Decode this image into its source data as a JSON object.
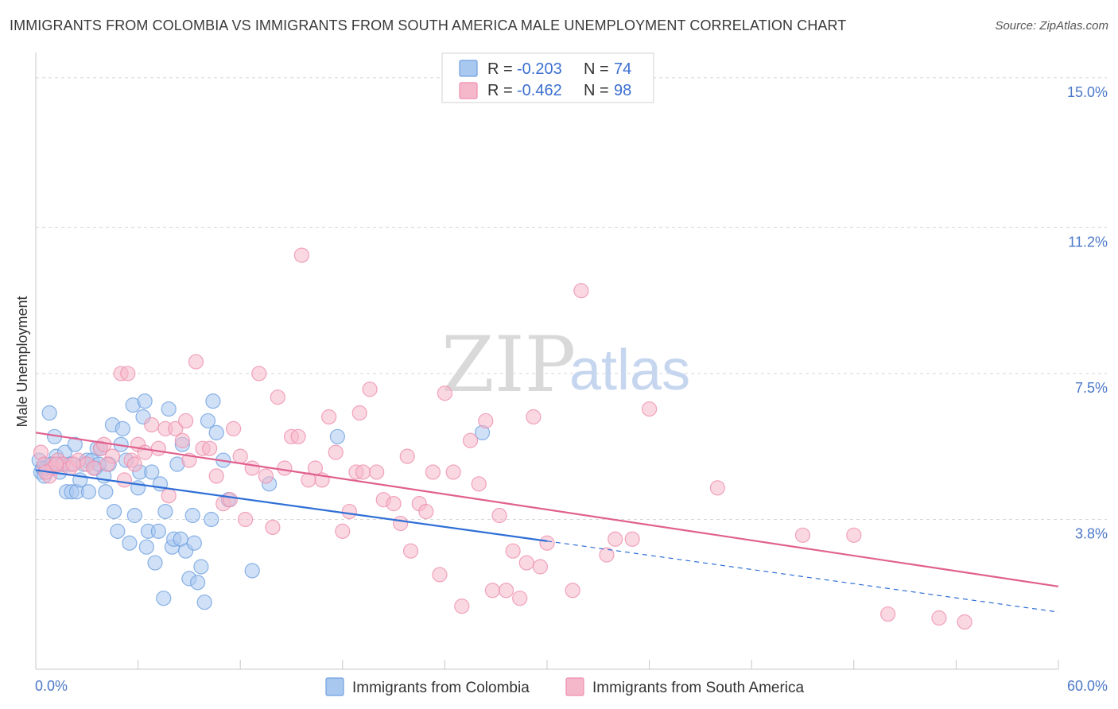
{
  "title": "IMMIGRANTS FROM COLOMBIA VS IMMIGRANTS FROM SOUTH AMERICA MALE UNEMPLOYMENT CORRELATION CHART",
  "source": "Source: ZipAtlas.com",
  "watermark": {
    "zip": "ZIP",
    "atlas": "atlas"
  },
  "colors": {
    "blue_fill": "#a9c8f0",
    "blue_stroke": "#6fa0e0",
    "blue_line": "#2f6fd6",
    "pink_fill": "#f5b8cb",
    "pink_stroke": "#ee8fae",
    "pink_line": "#e0608e",
    "grid": "#d8d8d8",
    "axis_label": "#4a78c8"
  },
  "legend": {
    "rows": [
      {
        "r_label": "R = ",
        "r_value": "-0.203",
        "n_label": "N = ",
        "n_value": "74"
      },
      {
        "r_label": "R = ",
        "r_value": "-0.462",
        "n_label": "N = ",
        "n_value": "98"
      }
    ]
  },
  "chart_data": {
    "type": "scatter",
    "xlabel": "",
    "ylabel": "Male Unemployment",
    "xlim": [
      0,
      60
    ],
    "ylim": [
      0,
      15.4
    ],
    "x_tick_labels": [
      "0.0%",
      "60.0%"
    ],
    "y_ticks": [
      3.8,
      7.5,
      11.2,
      15.0
    ],
    "y_tick_labels": [
      "3.8%",
      "7.5%",
      "11.2%",
      "15.0%"
    ],
    "grid": "horizontal dashed",
    "legend_position": "top-center",
    "series": [
      {
        "name": "Immigrants from Colombia",
        "color": "blue",
        "trend": {
          "x0": 0.0,
          "y0": 5.05,
          "x1": 30.0,
          "y1": 3.25,
          "dashed_to_x": 60.0,
          "dashed_to_y": 1.45
        },
        "points": [
          [
            0.2,
            5.3
          ],
          [
            0.3,
            5.0
          ],
          [
            0.4,
            5.1
          ],
          [
            0.5,
            4.9
          ],
          [
            0.6,
            5.1
          ],
          [
            0.8,
            6.5
          ],
          [
            1.0,
            5.2
          ],
          [
            1.1,
            5.9
          ],
          [
            1.2,
            5.4
          ],
          [
            1.4,
            5.0
          ],
          [
            1.6,
            5.2
          ],
          [
            1.7,
            5.5
          ],
          [
            1.8,
            4.5
          ],
          [
            2.0,
            5.2
          ],
          [
            2.1,
            4.5
          ],
          [
            2.3,
            5.7
          ],
          [
            2.4,
            4.5
          ],
          [
            2.6,
            4.8
          ],
          [
            2.8,
            5.2
          ],
          [
            3.0,
            5.3
          ],
          [
            3.1,
            4.5
          ],
          [
            3.3,
            5.3
          ],
          [
            3.5,
            5.1
          ],
          [
            3.6,
            5.6
          ],
          [
            3.8,
            5.6
          ],
          [
            4.0,
            4.9
          ],
          [
            4.1,
            4.5
          ],
          [
            4.3,
            5.2
          ],
          [
            4.5,
            6.2
          ],
          [
            4.6,
            4.0
          ],
          [
            4.8,
            3.5
          ],
          [
            5.0,
            5.7
          ],
          [
            5.1,
            6.1
          ],
          [
            5.3,
            5.3
          ],
          [
            5.5,
            3.2
          ],
          [
            5.7,
            6.7
          ],
          [
            5.8,
            3.9
          ],
          [
            6.0,
            4.6
          ],
          [
            6.1,
            5.0
          ],
          [
            6.3,
            6.4
          ],
          [
            6.4,
            6.8
          ],
          [
            6.5,
            3.1
          ],
          [
            6.6,
            3.5
          ],
          [
            6.8,
            5.0
          ],
          [
            7.0,
            2.7
          ],
          [
            7.2,
            3.5
          ],
          [
            7.3,
            4.7
          ],
          [
            7.5,
            1.8
          ],
          [
            7.6,
            4.0
          ],
          [
            7.8,
            6.6
          ],
          [
            8.0,
            3.1
          ],
          [
            8.1,
            3.3
          ],
          [
            8.3,
            5.2
          ],
          [
            8.5,
            3.3
          ],
          [
            8.6,
            5.7
          ],
          [
            8.8,
            3.0
          ],
          [
            9.0,
            2.3
          ],
          [
            9.2,
            3.9
          ],
          [
            9.3,
            3.2
          ],
          [
            9.5,
            2.2
          ],
          [
            9.7,
            2.6
          ],
          [
            9.9,
            1.7
          ],
          [
            10.1,
            6.3
          ],
          [
            10.3,
            3.8
          ],
          [
            10.4,
            6.8
          ],
          [
            10.6,
            6.0
          ],
          [
            11.0,
            5.3
          ],
          [
            11.3,
            4.3
          ],
          [
            12.7,
            2.5
          ],
          [
            13.7,
            4.7
          ],
          [
            17.7,
            5.9
          ],
          [
            26.2,
            6.0
          ],
          [
            0.9,
            5.2
          ],
          [
            3.7,
            5.2
          ]
        ]
      },
      {
        "name": "Immigrants from South America",
        "color": "pink",
        "trend": {
          "x0": 0.0,
          "y0": 6.0,
          "x1": 60.0,
          "y1": 2.1
        },
        "points": [
          [
            0.3,
            5.5
          ],
          [
            0.5,
            5.2
          ],
          [
            0.8,
            4.9
          ],
          [
            1.0,
            5.1
          ],
          [
            1.3,
            5.3
          ],
          [
            1.6,
            5.2
          ],
          [
            2.0,
            5.1
          ],
          [
            2.5,
            5.3
          ],
          [
            3.0,
            5.2
          ],
          [
            3.4,
            5.1
          ],
          [
            3.8,
            5.6
          ],
          [
            4.0,
            5.7
          ],
          [
            4.5,
            5.4
          ],
          [
            5.0,
            7.5
          ],
          [
            5.2,
            4.8
          ],
          [
            5.4,
            7.5
          ],
          [
            5.6,
            5.3
          ],
          [
            6.0,
            5.7
          ],
          [
            6.4,
            5.5
          ],
          [
            6.8,
            6.2
          ],
          [
            7.2,
            5.6
          ],
          [
            7.6,
            6.1
          ],
          [
            7.8,
            4.4
          ],
          [
            8.2,
            6.1
          ],
          [
            8.6,
            5.8
          ],
          [
            8.8,
            6.3
          ],
          [
            9.0,
            5.3
          ],
          [
            9.4,
            7.8
          ],
          [
            9.8,
            5.6
          ],
          [
            10.2,
            5.6
          ],
          [
            10.6,
            4.9
          ],
          [
            11.0,
            4.2
          ],
          [
            11.4,
            4.3
          ],
          [
            11.6,
            6.1
          ],
          [
            12.0,
            5.4
          ],
          [
            12.3,
            3.8
          ],
          [
            12.7,
            5.1
          ],
          [
            13.1,
            7.5
          ],
          [
            13.5,
            4.9
          ],
          [
            13.9,
            3.6
          ],
          [
            14.2,
            6.9
          ],
          [
            14.6,
            5.1
          ],
          [
            15.0,
            5.9
          ],
          [
            15.4,
            5.9
          ],
          [
            15.6,
            10.5
          ],
          [
            16.0,
            4.8
          ],
          [
            16.4,
            5.1
          ],
          [
            16.8,
            4.8
          ],
          [
            17.2,
            6.4
          ],
          [
            17.6,
            5.5
          ],
          [
            18.0,
            3.5
          ],
          [
            18.4,
            4.0
          ],
          [
            18.8,
            5.0
          ],
          [
            19.0,
            6.5
          ],
          [
            19.2,
            5.0
          ],
          [
            19.6,
            7.1
          ],
          [
            20.0,
            5.0
          ],
          [
            20.4,
            4.3
          ],
          [
            21.0,
            4.2
          ],
          [
            21.4,
            3.7
          ],
          [
            21.8,
            5.4
          ],
          [
            22.0,
            3.0
          ],
          [
            22.5,
            4.2
          ],
          [
            22.9,
            4.0
          ],
          [
            23.3,
            5.0
          ],
          [
            23.7,
            2.4
          ],
          [
            24.0,
            7.0
          ],
          [
            24.5,
            5.0
          ],
          [
            25.0,
            1.6
          ],
          [
            25.5,
            5.8
          ],
          [
            26.0,
            4.7
          ],
          [
            26.4,
            6.3
          ],
          [
            26.8,
            2.0
          ],
          [
            27.2,
            3.9
          ],
          [
            27.6,
            2.0
          ],
          [
            28.0,
            3.0
          ],
          [
            28.4,
            1.8
          ],
          [
            28.8,
            2.7
          ],
          [
            29.2,
            6.4
          ],
          [
            29.6,
            2.6
          ],
          [
            30.0,
            3.2
          ],
          [
            31.5,
            2.0
          ],
          [
            32.0,
            9.6
          ],
          [
            33.5,
            2.9
          ],
          [
            34.0,
            3.3
          ],
          [
            35.0,
            3.3
          ],
          [
            36.0,
            6.6
          ],
          [
            40.0,
            4.6
          ],
          [
            45.0,
            3.4
          ],
          [
            48.0,
            3.4
          ],
          [
            50.0,
            1.4
          ],
          [
            53.0,
            1.3
          ],
          [
            54.5,
            1.2
          ],
          [
            0.6,
            5.0
          ],
          [
            1.2,
            5.2
          ],
          [
            2.2,
            5.2
          ],
          [
            4.2,
            5.2
          ],
          [
            5.8,
            5.2
          ]
        ]
      }
    ]
  }
}
